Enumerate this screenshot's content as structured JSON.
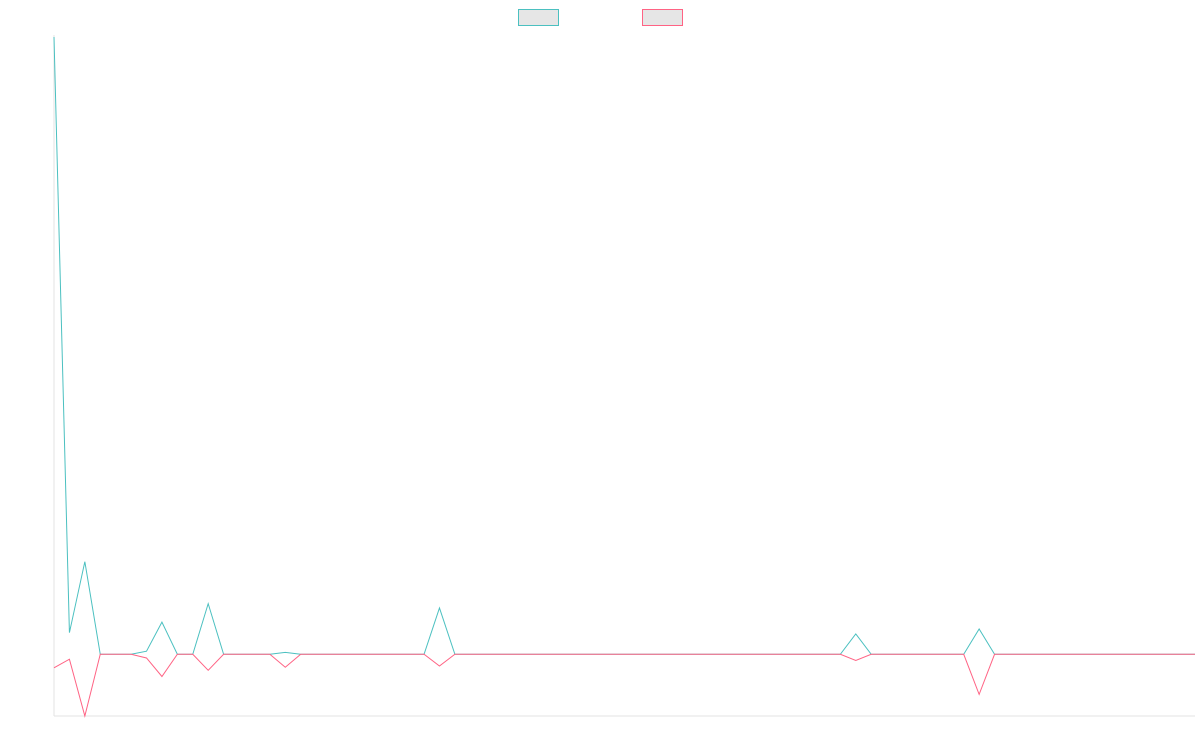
{
  "chart_data": {
    "type": "line",
    "title": "",
    "xlabel": "",
    "ylabel": "",
    "grid": false,
    "legend_position": "top-center",
    "ylim": [
      -10,
      100
    ],
    "series": [
      {
        "color": "#4bc0c0",
        "values": [
          100,
          3.5,
          15,
          0,
          0,
          0,
          0.5,
          5.2,
          0,
          0,
          8.2,
          0,
          0,
          0,
          0,
          0.3,
          0,
          0,
          0,
          0,
          0,
          0,
          0,
          0,
          0,
          7.5,
          0,
          0,
          0,
          0,
          0,
          0,
          0,
          0,
          0,
          0,
          0,
          0,
          0,
          0,
          0,
          0,
          0,
          0,
          0,
          0,
          0,
          0,
          0,
          0,
          0,
          0,
          3.3,
          0,
          0,
          0,
          0,
          0,
          0,
          0,
          4.1,
          0,
          0,
          0,
          0,
          0,
          0,
          0,
          0,
          0,
          0,
          0,
          0,
          0,
          0
        ]
      },
      {
        "color": "#ff6384",
        "values": [
          -2.2,
          -0.8,
          -10,
          0,
          0,
          0,
          -0.6,
          -3.6,
          0,
          0,
          -2.6,
          0,
          0,
          0,
          0,
          -2.1,
          0,
          0,
          0,
          0,
          0,
          0,
          0,
          0,
          0,
          -1.9,
          0,
          0,
          0,
          0,
          0,
          0,
          0,
          0,
          0,
          0,
          0,
          0,
          0,
          0,
          0,
          0,
          0,
          0,
          0,
          0,
          0,
          0,
          0,
          0,
          0,
          0,
          -1,
          0,
          0,
          0,
          0,
          0,
          0,
          0,
          -6.5,
          0,
          0,
          0,
          0,
          0,
          0,
          0,
          0,
          0,
          0,
          0,
          0,
          0,
          0
        ]
      }
    ]
  }
}
